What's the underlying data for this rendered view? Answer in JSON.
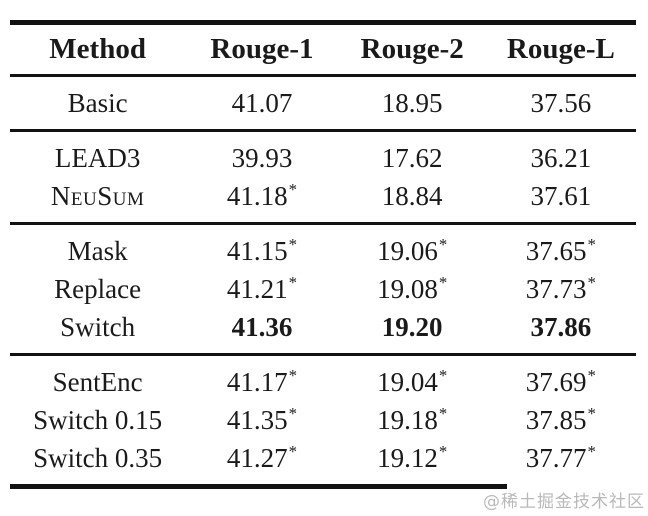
{
  "page": {
    "background_color": "#ffffff",
    "text_color": "#1a1a1a",
    "rule_color": "#121212"
  },
  "watermark": {
    "text": "@稀土掘金技术社区",
    "color": "#b9b9b9"
  },
  "table": {
    "columns": [
      "Method",
      "Rouge-1",
      "Rouge-2",
      "Rouge-L"
    ],
    "star_symbol": "*",
    "groups": [
      {
        "rows": [
          {
            "method": "Basic",
            "scores": [
              {
                "value": "41.07",
                "starred": false
              },
              {
                "value": "18.95",
                "starred": false
              },
              {
                "value": "37.56",
                "starred": false
              }
            ]
          }
        ]
      },
      {
        "rows": [
          {
            "method": "LEAD3",
            "scores": [
              {
                "value": "39.93",
                "starred": false
              },
              {
                "value": "17.62",
                "starred": false
              },
              {
                "value": "36.21",
                "starred": false
              }
            ]
          },
          {
            "method": "NeuSum",
            "method_smallcaps": true,
            "scores": [
              {
                "value": "41.18",
                "starred": true
              },
              {
                "value": "18.84",
                "starred": false
              },
              {
                "value": "37.61",
                "starred": false
              }
            ]
          }
        ]
      },
      {
        "rows": [
          {
            "method": "Mask",
            "scores": [
              {
                "value": "41.15",
                "starred": true
              },
              {
                "value": "19.06",
                "starred": true
              },
              {
                "value": "37.65",
                "starred": true
              }
            ]
          },
          {
            "method": "Replace",
            "scores": [
              {
                "value": "41.21",
                "starred": true
              },
              {
                "value": "19.08",
                "starred": true
              },
              {
                "value": "37.73",
                "starred": true
              }
            ]
          },
          {
            "method": "Switch",
            "bold_scores": true,
            "scores": [
              {
                "value": "41.36",
                "starred": false
              },
              {
                "value": "19.20",
                "starred": false
              },
              {
                "value": "37.86",
                "starred": false
              }
            ]
          }
        ]
      },
      {
        "rows": [
          {
            "method": "SentEnc",
            "scores": [
              {
                "value": "41.17",
                "starred": true
              },
              {
                "value": "19.04",
                "starred": true
              },
              {
                "value": "37.69",
                "starred": true
              }
            ]
          },
          {
            "method": "Switch 0.15",
            "scores": [
              {
                "value": "41.35",
                "starred": true
              },
              {
                "value": "19.18",
                "starred": true
              },
              {
                "value": "37.85",
                "starred": true
              }
            ]
          },
          {
            "method": "Switch 0.35",
            "scores": [
              {
                "value": "41.27",
                "starred": true
              },
              {
                "value": "19.12",
                "starred": true
              },
              {
                "value": "37.77",
                "starred": true
              }
            ]
          }
        ]
      }
    ]
  }
}
